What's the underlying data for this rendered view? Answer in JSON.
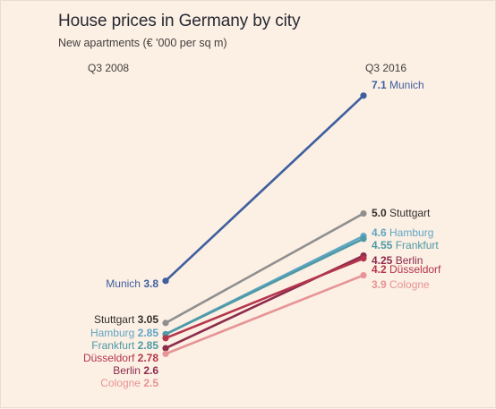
{
  "chart_data": {
    "type": "line",
    "title": "House prices in Germany by city",
    "subtitle": "New apartments (€ '000 per sq m)",
    "x": [
      "Q3 2008",
      "Q3 2016"
    ],
    "xlabel": "",
    "ylabel": "",
    "grid": false,
    "legend": "none",
    "series": [
      {
        "name": "Munich",
        "values": [
          3.8,
          7.1
        ],
        "labels": [
          "3.8",
          "7.1"
        ],
        "color": "#3f5f9e"
      },
      {
        "name": "Stuttgart",
        "values": [
          3.05,
          5.0
        ],
        "labels": [
          "3.05",
          "5.0"
        ],
        "color": "#8f8f8f"
      },
      {
        "name": "Hamburg",
        "values": [
          2.85,
          4.6
        ],
        "labels": [
          "2.85",
          "4.6"
        ],
        "color": "#5fa6c4"
      },
      {
        "name": "Frankfurt",
        "values": [
          2.85,
          4.55
        ],
        "labels": [
          "2.85",
          "4.55"
        ],
        "color": "#4e9aa6"
      },
      {
        "name": "Berlin",
        "values": [
          2.6,
          4.25
        ],
        "labels": [
          "2.6",
          "4.25"
        ],
        "color": "#8c2b4c"
      },
      {
        "name": "Düsseldorf",
        "values": [
          2.78,
          4.2
        ],
        "labels": [
          "2.78",
          "4.2"
        ],
        "color": "#b4354c"
      },
      {
        "name": "Cologne",
        "values": [
          2.5,
          3.9
        ],
        "labels": [
          "2.5",
          "3.9"
        ],
        "color": "#e69496"
      }
    ]
  }
}
